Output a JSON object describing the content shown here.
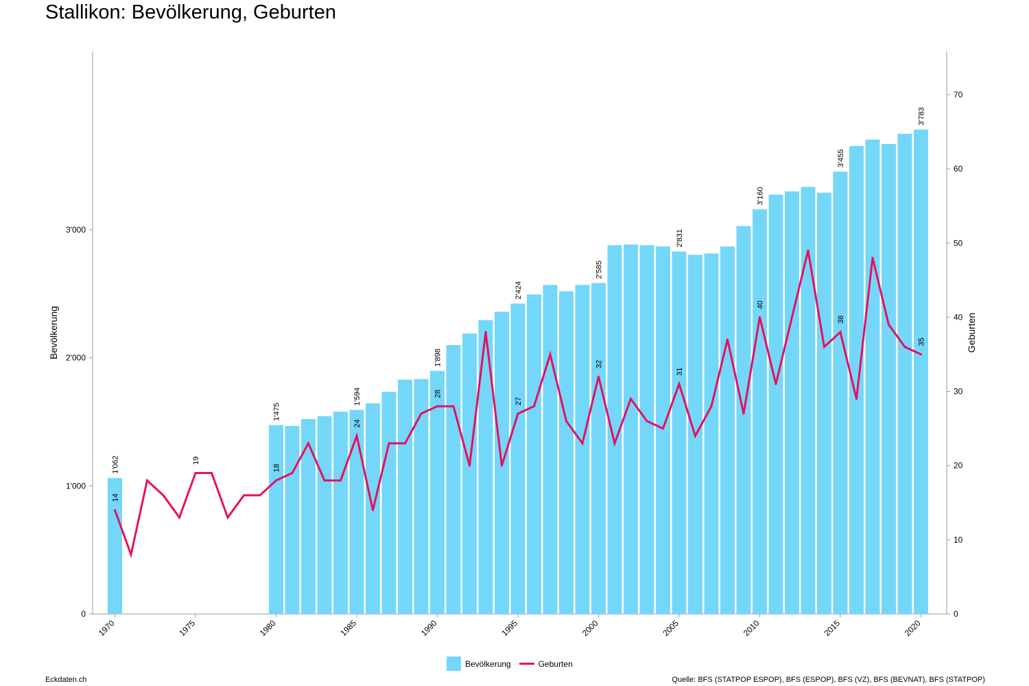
{
  "title": "Stallikon: Bevölkerung, Geburten",
  "footer": {
    "left": "Eckdaten.ch",
    "right": "Quelle: BFS (STATPOP ESPOP), BFS (ESPOP), BFS (VZ), BFS (BEVNAT), BFS (STATPOP)"
  },
  "colors": {
    "bars": "#74d7fa",
    "line": "#e6105d",
    "axis": "#999999"
  },
  "chart_data": {
    "type": "bar",
    "title": "Stallikon: Bevölkerung, Geburten",
    "ylabel": "Bevölkerung",
    "y2label": "Geburten",
    "ylim": [
      0,
      4000
    ],
    "y2lim": [
      0,
      75
    ],
    "yticks": [
      0,
      1000,
      2000,
      3000
    ],
    "ytick_labels": [
      "0",
      "1'000",
      "2'000",
      "3'000"
    ],
    "y2ticks": [
      0,
      10,
      20,
      30,
      40,
      50,
      60,
      70
    ],
    "xticks": [
      1970,
      1975,
      1980,
      1985,
      1990,
      1995,
      2000,
      2005,
      2010,
      2015,
      2020
    ],
    "legend_position": "bottom",
    "x": [
      1970,
      1971,
      1972,
      1973,
      1974,
      1975,
      1976,
      1977,
      1978,
      1979,
      1980,
      1981,
      1982,
      1983,
      1984,
      1985,
      1986,
      1987,
      1988,
      1989,
      1990,
      1991,
      1992,
      1993,
      1994,
      1995,
      1996,
      1997,
      1998,
      1999,
      2000,
      2001,
      2002,
      2003,
      2004,
      2005,
      2006,
      2007,
      2008,
      2009,
      2010,
      2011,
      2012,
      2013,
      2014,
      2015,
      2016,
      2017,
      2018,
      2019,
      2020
    ],
    "series": [
      {
        "name": "Bevölkerung",
        "type": "bar",
        "axis": "left",
        "values": [
          1062,
          null,
          null,
          null,
          null,
          null,
          null,
          null,
          null,
          null,
          1475,
          1468,
          1522,
          1545,
          1580,
          1594,
          1645,
          1735,
          1830,
          1835,
          1898,
          2100,
          2190,
          2295,
          2360,
          2424,
          2495,
          2570,
          2520,
          2570,
          2585,
          2880,
          2885,
          2880,
          2870,
          2831,
          2805,
          2815,
          2870,
          3030,
          3160,
          3275,
          3300,
          3335,
          3290,
          3455,
          3655,
          3705,
          3670,
          3750,
          3783
        ],
        "labels": {
          "1970": "1'062",
          "1980": "1'475",
          "1985": "1'594",
          "1990": "1'898",
          "1995": "2'424",
          "2000": "2'585",
          "2005": "2'831",
          "2010": "3'160",
          "2015": "3'455",
          "2020": "3'783"
        }
      },
      {
        "name": "Geburten",
        "type": "line",
        "axis": "right",
        "values": [
          14,
          8,
          18,
          16,
          13,
          19,
          19,
          13,
          16,
          16,
          18,
          19,
          23,
          18,
          18,
          24,
          14,
          23,
          23,
          27,
          28,
          28,
          20,
          38,
          20,
          27,
          28,
          35,
          26,
          23,
          32,
          23,
          29,
          26,
          25,
          31,
          24,
          28,
          37,
          27,
          40,
          31,
          40,
          49,
          36,
          38,
          29,
          48,
          39,
          36,
          35
        ],
        "labels": {
          "1970": "14",
          "1975": "19",
          "1980": "18",
          "1985": "24",
          "1990": "28",
          "1995": "27",
          "2000": "32",
          "2005": "31",
          "2010": "40",
          "2015": "38",
          "2020": "35"
        }
      }
    ]
  }
}
